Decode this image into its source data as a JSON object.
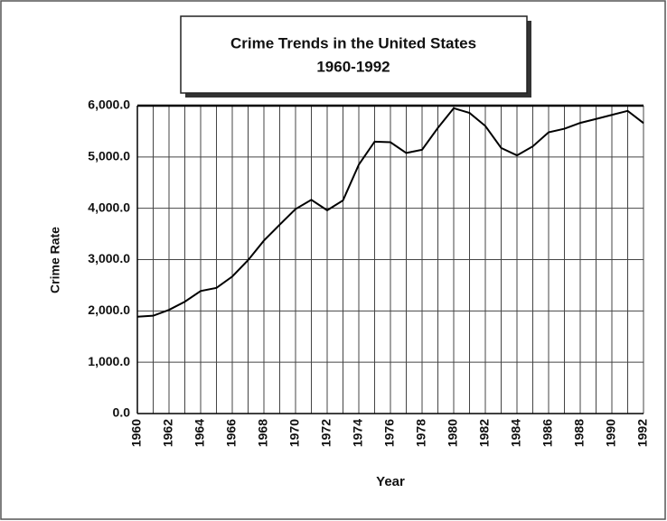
{
  "chart_data": {
    "type": "line",
    "title": "Crime Trends in the United States",
    "subtitle": "1960-1992",
    "x_label": "Year",
    "y_label": "Crime Rate",
    "categories": [
      "1960",
      null,
      "1962",
      null,
      "1964",
      null,
      "1966",
      null,
      "1968",
      null,
      "1970",
      null,
      "1972",
      null,
      "1974",
      null,
      "1976",
      null,
      "1978",
      null,
      "1980",
      null,
      "1982",
      null,
      "1984",
      null,
      "1986",
      null,
      "1988",
      null,
      "1990",
      null,
      "1992"
    ],
    "values": [
      1887,
      1906,
      2020,
      2180,
      2388,
      2449,
      2670,
      2990,
      3370,
      3680,
      3985,
      4165,
      3961,
      4154,
      4850,
      5299,
      5287,
      5078,
      5140,
      5566,
      5950,
      5858,
      5604,
      5175,
      5031,
      5207,
      5480,
      5550,
      5664,
      5741,
      5820,
      5898,
      5660
    ],
    "color": "#000000",
    "ylim": [
      0,
      6000
    ],
    "yticks": [
      {
        "value": 0,
        "label": "0.0"
      },
      {
        "value": 1000,
        "label": "1,000.0"
      },
      {
        "value": 2000,
        "label": "2,000.0"
      },
      {
        "value": 3000,
        "label": "3,000.0"
      },
      {
        "value": 4000,
        "label": "4,000.0"
      },
      {
        "value": 5000,
        "label": "5,000.0"
      },
      {
        "value": 6000,
        "label": "6,000.0"
      }
    ],
    "grid": true
  }
}
